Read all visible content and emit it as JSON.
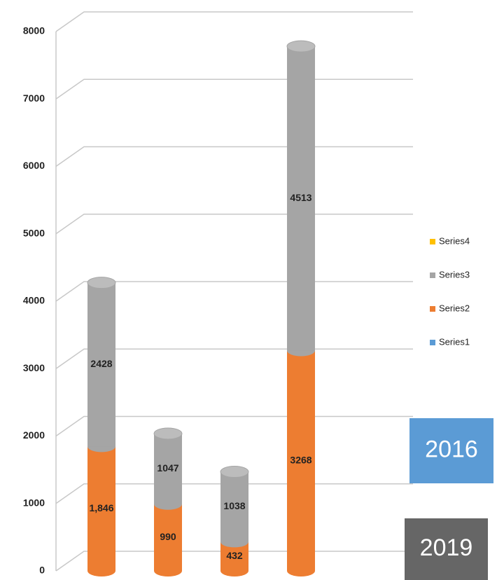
{
  "chart_data": {
    "type": "bar3d_stacked",
    "categories": [
      null,
      null,
      null,
      null
    ],
    "series": [
      {
        "name": "Series1",
        "color": "#5b9bd5",
        "values": [
          null,
          null,
          null,
          null
        ]
      },
      {
        "name": "Series2",
        "color": "#ed7d31",
        "values": [
          1846,
          990,
          432,
          3268
        ],
        "value_labels": [
          "1,846",
          "990",
          "432",
          "3268"
        ]
      },
      {
        "name": "Series3",
        "color": "#a5a5a5",
        "values": [
          2428,
          1047,
          1038,
          4513
        ]
      },
      {
        "name": "Series4",
        "color": "#ffc000",
        "values": [
          null,
          null,
          null,
          null
        ]
      }
    ],
    "ylim": [
      0,
      8000
    ],
    "yticks": [
      0,
      1000,
      2000,
      3000,
      4000,
      5000,
      6000,
      7000,
      8000
    ],
    "grid": true,
    "legend": "right",
    "annotations": [
      {
        "text": "2016",
        "color": "#5b9bd5"
      },
      {
        "text": "2019",
        "color": "#666666"
      }
    ]
  }
}
